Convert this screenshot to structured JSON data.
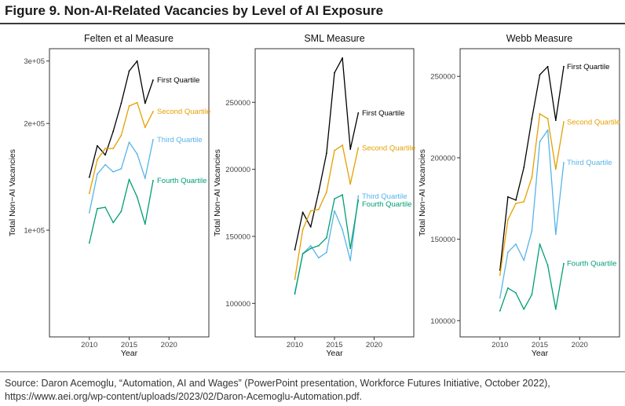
{
  "figure": {
    "title": "Figure 9. Non-AI-Related Vacancies by Level of AI Exposure",
    "source_line1": "Source: Daron Acemoglu, “Automation, AI and Wages” (PowerPoint presentation, Workforce Futures Initiative, October 2022),",
    "source_line2": "https://www.aei.org/wp-content/uploads/2023/02/Daron-Acemoglu-Automation.pdf."
  },
  "colors": {
    "First Quartile": "#000000",
    "Second Quartile": "#E69F00",
    "Third Quartile": "#56B4E9",
    "Fourth Quartile": "#009E73"
  },
  "chart_data": [
    {
      "type": "line",
      "title": "Felten et al Measure",
      "xlabel": "Year",
      "ylabel": "Total Non−AI Vacancies",
      "xlim": [
        2005,
        2025
      ],
      "ylim": [
        50000,
        325000
      ],
      "log_scale_y": true,
      "xticks": [
        2010,
        2015,
        2020
      ],
      "yticks": [
        100000,
        200000,
        300000
      ],
      "ytick_labels": [
        "1e+05",
        "2e+05",
        "3e+05"
      ],
      "x": [
        2010,
        2011,
        2012,
        2013,
        2014,
        2015,
        2016,
        2017,
        2018
      ],
      "series": [
        {
          "name": "First Quartile",
          "values": [
            141000,
            173000,
            163000,
            190000,
            228000,
            281000,
            300000,
            228000,
            265000
          ]
        },
        {
          "name": "Second Quartile",
          "values": [
            127000,
            158000,
            170000,
            170000,
            185000,
            224000,
            229000,
            195000,
            216000
          ]
        },
        {
          "name": "Third Quartile",
          "values": [
            112000,
            144000,
            153000,
            146000,
            149000,
            177000,
            164000,
            140000,
            180000
          ]
        },
        {
          "name": "Fourth Quartile",
          "values": [
            92000,
            115000,
            116000,
            105000,
            113000,
            139000,
            124000,
            104000,
            138000
          ]
        }
      ],
      "legend": "inline labels at line ends"
    },
    {
      "type": "line",
      "title": "SML Measure",
      "xlabel": "Year",
      "ylabel": "Total Non−AI Vacancies",
      "xlim": [
        2005,
        2025
      ],
      "ylim": [
        75000,
        290000
      ],
      "xticks": [
        2010,
        2015,
        2020
      ],
      "yticks": [
        100000,
        150000,
        200000,
        250000
      ],
      "ytick_labels": [
        "100000",
        "150000",
        "200000",
        "250000"
      ],
      "x": [
        2010,
        2011,
        2012,
        2013,
        2014,
        2015,
        2016,
        2017,
        2018
      ],
      "series": [
        {
          "name": "First Quartile",
          "values": [
            140000,
            168000,
            157000,
            183000,
            212000,
            272000,
            283000,
            215000,
            242000
          ]
        },
        {
          "name": "Second Quartile",
          "values": [
            118000,
            155000,
            169000,
            170000,
            183000,
            214000,
            218000,
            189000,
            216000
          ]
        },
        {
          "name": "Third Quartile",
          "values": [
            108000,
            137000,
            143000,
            134000,
            138000,
            169000,
            155000,
            132000,
            180000
          ]
        },
        {
          "name": "Fourth Quartile",
          "values": [
            107000,
            137000,
            141000,
            143000,
            149000,
            178000,
            181000,
            141000,
            177000
          ]
        }
      ],
      "legend": "inline labels at line ends"
    },
    {
      "type": "line",
      "title": "Webb Measure",
      "xlabel": "Year",
      "ylabel": "Total Non−AI Vacancies",
      "xlim": [
        2005,
        2025
      ],
      "ylim": [
        90000,
        267000
      ],
      "xticks": [
        2010,
        2015,
        2020
      ],
      "yticks": [
        100000,
        150000,
        200000,
        250000
      ],
      "ytick_labels": [
        "100000",
        "150000",
        "200000",
        "250000"
      ],
      "x": [
        2010,
        2011,
        2012,
        2013,
        2014,
        2015,
        2016,
        2017,
        2018
      ],
      "series": [
        {
          "name": "First Quartile",
          "values": [
            131000,
            176000,
            174000,
            194000,
            224000,
            251000,
            256000,
            223000,
            256000
          ]
        },
        {
          "name": "Second Quartile",
          "values": [
            128000,
            162000,
            172000,
            173000,
            188000,
            227000,
            224000,
            193000,
            222000
          ]
        },
        {
          "name": "Third Quartile",
          "values": [
            114000,
            142000,
            147000,
            137000,
            155000,
            210000,
            217000,
            153000,
            197000
          ]
        },
        {
          "name": "Fourth Quartile",
          "values": [
            106000,
            120000,
            117000,
            107000,
            116000,
            147000,
            134000,
            107000,
            135000
          ]
        }
      ],
      "legend": "inline labels at line ends"
    }
  ]
}
